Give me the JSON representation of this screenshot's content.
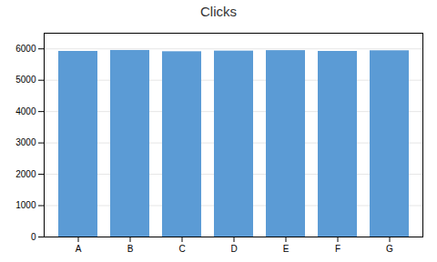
{
  "chart_data": {
    "type": "bar",
    "title": "Clicks",
    "categories": [
      "A",
      "B",
      "C",
      "D",
      "E",
      "F",
      "G"
    ],
    "values": [
      5920,
      5950,
      5910,
      5930,
      5945,
      5920,
      5940
    ],
    "color": "#5B9BD5",
    "ylim": [
      0,
      6500
    ],
    "yticks": [
      0,
      1000,
      2000,
      3000,
      4000,
      5000,
      6000
    ],
    "grid": true
  }
}
